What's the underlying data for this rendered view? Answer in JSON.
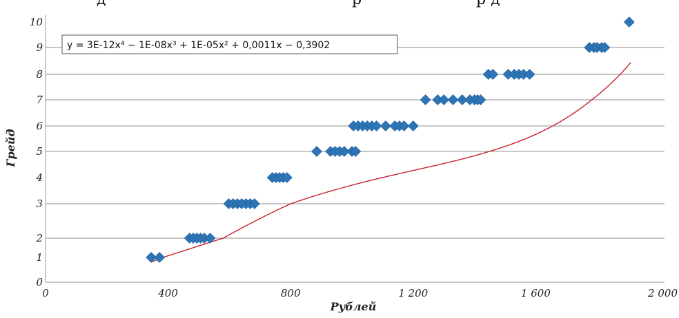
{
  "top_fragment": {
    "left": "д",
    "middle": "р",
    "right": "р д"
  },
  "chart_data": {
    "type": "scatter",
    "xlabel": "Рублей",
    "ylabel": "Грейд",
    "xlim": [
      0,
      2000
    ],
    "ylim": [
      0,
      10
    ],
    "x_ticks": [
      {
        "value": 0,
        "label": "0"
      },
      {
        "value": 400,
        "label": "400"
      },
      {
        "value": 800,
        "label": "800"
      },
      {
        "value": 1200,
        "label": "1 200"
      },
      {
        "value": 1600,
        "label": "1 600"
      },
      {
        "value": 2000,
        "label": "2 000"
      }
    ],
    "y_ticks": [
      {
        "value": 0,
        "label": "0"
      },
      {
        "value": 1,
        "label": "1"
      },
      {
        "value": 2,
        "label": "2"
      },
      {
        "value": 3,
        "label": "3"
      },
      {
        "value": 4,
        "label": "4"
      },
      {
        "value": 5,
        "label": "5"
      },
      {
        "value": 6,
        "label": "6"
      },
      {
        "value": 7,
        "label": "7"
      },
      {
        "value": 8,
        "label": "8"
      },
      {
        "value": 9,
        "label": "9"
      },
      {
        "value": 10,
        "label": "10"
      }
    ],
    "gridlines_y": [
      2,
      3,
      5,
      6,
      7,
      8,
      9
    ],
    "grid": true,
    "trendline": {
      "label": "y = 3E-12x⁴ − 1E-08x³ + 1E-05x² + 0,0011x − 0,3902",
      "x_range": [
        345,
        1910
      ],
      "coefficients": [
        3e-12,
        -1e-08,
        1e-05,
        0.0011,
        -0.3902
      ],
      "color": "#c8202c"
    },
    "marker_color": "#2e75b6",
    "points": [
      {
        "x": 345,
        "y": 1
      },
      {
        "x": 372,
        "y": 1
      },
      {
        "x": 470,
        "y": 2
      },
      {
        "x": 482,
        "y": 2
      },
      {
        "x": 494,
        "y": 2
      },
      {
        "x": 506,
        "y": 2
      },
      {
        "x": 518,
        "y": 2
      },
      {
        "x": 537,
        "y": 2
      },
      {
        "x": 598,
        "y": 3
      },
      {
        "x": 612,
        "y": 3
      },
      {
        "x": 626,
        "y": 3
      },
      {
        "x": 640,
        "y": 3
      },
      {
        "x": 654,
        "y": 3
      },
      {
        "x": 668,
        "y": 3
      },
      {
        "x": 682,
        "y": 3
      },
      {
        "x": 740,
        "y": 4
      },
      {
        "x": 752,
        "y": 4
      },
      {
        "x": 764,
        "y": 4
      },
      {
        "x": 776,
        "y": 4
      },
      {
        "x": 788,
        "y": 4
      },
      {
        "x": 885,
        "y": 5
      },
      {
        "x": 930,
        "y": 5
      },
      {
        "x": 945,
        "y": 5
      },
      {
        "x": 960,
        "y": 5
      },
      {
        "x": 975,
        "y": 5
      },
      {
        "x": 1000,
        "y": 5
      },
      {
        "x": 1012,
        "y": 5
      },
      {
        "x": 1005,
        "y": 6
      },
      {
        "x": 1020,
        "y": 6
      },
      {
        "x": 1035,
        "y": 6
      },
      {
        "x": 1050,
        "y": 6
      },
      {
        "x": 1065,
        "y": 6
      },
      {
        "x": 1080,
        "y": 6
      },
      {
        "x": 1110,
        "y": 6
      },
      {
        "x": 1140,
        "y": 6
      },
      {
        "x": 1155,
        "y": 6
      },
      {
        "x": 1170,
        "y": 6
      },
      {
        "x": 1200,
        "y": 6
      },
      {
        "x": 1240,
        "y": 7
      },
      {
        "x": 1280,
        "y": 7
      },
      {
        "x": 1300,
        "y": 7
      },
      {
        "x": 1330,
        "y": 7
      },
      {
        "x": 1360,
        "y": 7
      },
      {
        "x": 1385,
        "y": 7
      },
      {
        "x": 1400,
        "y": 7
      },
      {
        "x": 1410,
        "y": 7
      },
      {
        "x": 1420,
        "y": 7
      },
      {
        "x": 1445,
        "y": 8
      },
      {
        "x": 1460,
        "y": 8
      },
      {
        "x": 1510,
        "y": 8
      },
      {
        "x": 1530,
        "y": 8
      },
      {
        "x": 1545,
        "y": 8
      },
      {
        "x": 1560,
        "y": 8
      },
      {
        "x": 1580,
        "y": 8
      },
      {
        "x": 1775,
        "y": 9
      },
      {
        "x": 1790,
        "y": 9
      },
      {
        "x": 1800,
        "y": 9
      },
      {
        "x": 1815,
        "y": 9
      },
      {
        "x": 1825,
        "y": 9
      },
      {
        "x": 1905,
        "y": 10
      }
    ]
  }
}
